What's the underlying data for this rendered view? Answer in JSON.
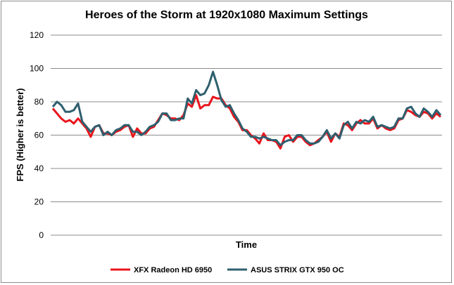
{
  "chart_data": {
    "type": "line",
    "title": "Heroes of the Storm at 1920x1080 Maximum Settings",
    "xlabel": "Time",
    "ylabel": "FPS (Higher is better)",
    "ylim": [
      0,
      120
    ],
    "yticks": [
      "0",
      "20",
      "40",
      "60",
      "80",
      "100",
      "120"
    ],
    "grid": true,
    "legend_position": "bottom",
    "series": [
      {
        "name": "XFX Radeon HD 6950",
        "color": "#e8141c",
        "values": [
          76,
          73,
          70,
          68,
          69,
          67,
          70,
          67,
          64,
          59,
          65,
          66,
          61,
          61,
          60,
          62,
          63,
          65,
          66,
          59,
          64,
          61,
          61,
          64,
          65,
          69,
          73,
          72,
          70,
          70,
          69,
          72,
          79,
          77,
          84,
          76,
          78,
          78,
          83,
          82,
          82,
          78,
          76,
          71,
          68,
          63,
          63,
          60,
          58,
          55,
          61,
          57,
          57,
          56,
          52,
          59,
          60,
          56,
          59,
          59,
          56,
          54,
          55,
          57,
          59,
          62,
          56,
          61,
          59,
          67,
          66,
          63,
          67,
          69,
          67,
          67,
          70,
          64,
          66,
          64,
          63,
          64,
          69,
          70,
          75,
          74,
          72,
          71,
          74,
          73,
          70,
          73,
          71
        ],
        "x_count": 93
      },
      {
        "name": "ASUS STRIX GTX 950 OC",
        "color": "#2e5f6e",
        "values": [
          77,
          80,
          78,
          74,
          74,
          75,
          79,
          68,
          65,
          62,
          65,
          66,
          60,
          62,
          60,
          63,
          64,
          66,
          66,
          62,
          62,
          60,
          62,
          65,
          66,
          68,
          73,
          73,
          69,
          69,
          70,
          70,
          82,
          79,
          87,
          84,
          85,
          90,
          98,
          90,
          81,
          77,
          78,
          73,
          69,
          64,
          62,
          59,
          59,
          58,
          59,
          58,
          57,
          57,
          54,
          56,
          57,
          57,
          60,
          60,
          57,
          55,
          55,
          56,
          59,
          63,
          58,
          61,
          58,
          66,
          68,
          64,
          68,
          67,
          69,
          68,
          71,
          65,
          66,
          65,
          64,
          65,
          70,
          70,
          76,
          77,
          73,
          71,
          76,
          74,
          71,
          75,
          72
        ],
        "x_count": 93
      }
    ]
  }
}
